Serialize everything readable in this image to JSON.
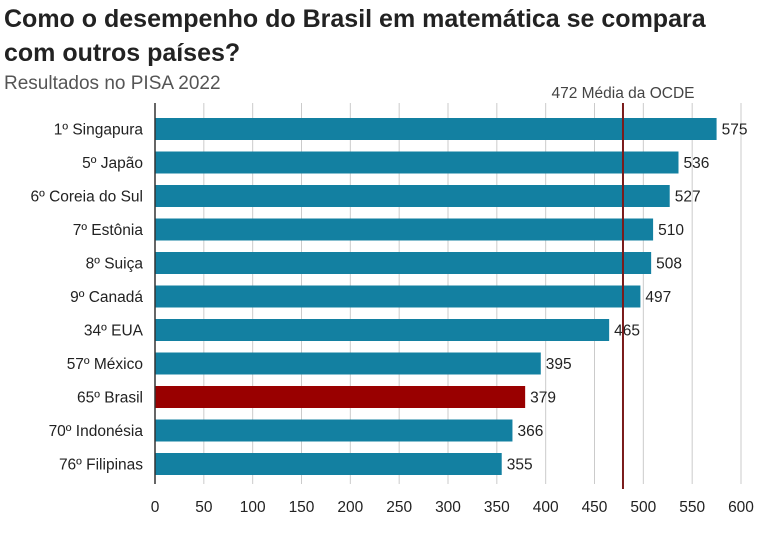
{
  "chart_data": {
    "type": "bar",
    "orientation": "horizontal",
    "title": "Como o desempenho do Brasil em matemática se compara com outros países?",
    "subtitle": "Resultados no PISA 2022",
    "categories": [
      "1º Singapura",
      "5º Japão",
      "6º Coreia do Sul",
      "7º Estônia",
      "8º Suiça",
      "9º Canadá",
      "34º EUA",
      "57º México",
      "65º Brasil",
      "70º Indonésia",
      "76º Filipinas"
    ],
    "values": [
      575,
      536,
      527,
      510,
      508,
      497,
      465,
      395,
      379,
      366,
      355
    ],
    "highlight_category": "65º Brasil",
    "xlim": [
      0,
      600
    ],
    "xticks": [
      0,
      50,
      100,
      150,
      200,
      250,
      300,
      350,
      400,
      450,
      500,
      550,
      600
    ],
    "grid": "vertical",
    "reference_line": {
      "value": 472,
      "label": "472 Média da OCDE"
    },
    "colors": {
      "bar": "#1380A1",
      "highlight": "#990000",
      "reference": "#7a1b1b",
      "grid": "#cbcbcb"
    }
  }
}
